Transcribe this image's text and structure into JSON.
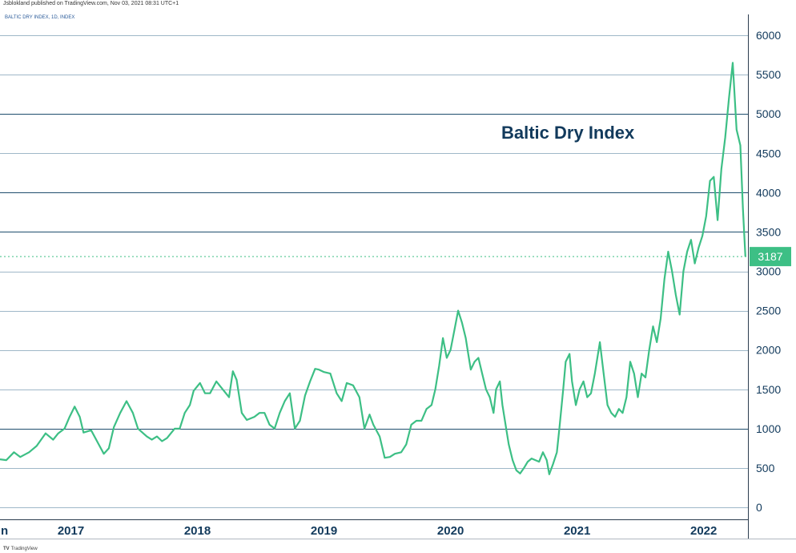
{
  "header": {
    "publisher": "Jsblokland published on TradingView.com, Nov 03, 2021 08:31 UTC+1",
    "symbol": "BALTIC DRY INDEX, 1D, INDEX"
  },
  "footer": {
    "watermark": "TradingView",
    "logo": "TV"
  },
  "colors": {
    "line": "#3dbf85",
    "grid": "#9fb8c8",
    "grid_major": "#1f4e6e",
    "last_price_bg": "#3dbf85",
    "text": "#123a5c"
  },
  "chart_data": {
    "type": "line",
    "title": "",
    "annotation": "Baltic Dry Index",
    "xlabel": "",
    "ylabel": "",
    "xlim": [
      2016.44,
      2022.35
    ],
    "ylim": [
      0,
      6000
    ],
    "y_ticks": [
      "0",
      "500",
      "1000",
      "1500",
      "2000",
      "2500",
      "3000",
      "3500",
      "4000",
      "4500",
      "5000",
      "5500",
      "6000"
    ],
    "x_ticks": [
      {
        "label": "Jun",
        "x": 2016.42
      },
      {
        "label": "2017",
        "x": 2017.0
      },
      {
        "label": "2018",
        "x": 2018.0
      },
      {
        "label": "2019",
        "x": 2019.0
      },
      {
        "label": "2020",
        "x": 2020.0
      },
      {
        "label": "2021",
        "x": 2021.0
      },
      {
        "label": "2022",
        "x": 2022.0
      }
    ],
    "last_value": 3187,
    "grid": true,
    "series": [
      {
        "points": [
          [
            2016.44,
            610
          ],
          [
            2016.49,
            600
          ],
          [
            2016.55,
            700
          ],
          [
            2016.6,
            640
          ],
          [
            2016.67,
            700
          ],
          [
            2016.73,
            780
          ],
          [
            2016.8,
            940
          ],
          [
            2016.86,
            860
          ],
          [
            2016.9,
            940
          ],
          [
            2016.95,
            1000
          ],
          [
            2016.99,
            1150
          ],
          [
            2017.03,
            1280
          ],
          [
            2017.07,
            1150
          ],
          [
            2017.1,
            950
          ],
          [
            2017.16,
            980
          ],
          [
            2017.22,
            800
          ],
          [
            2017.26,
            680
          ],
          [
            2017.3,
            750
          ],
          [
            2017.34,
            1020
          ],
          [
            2017.39,
            1200
          ],
          [
            2017.44,
            1350
          ],
          [
            2017.49,
            1200
          ],
          [
            2017.53,
            1000
          ],
          [
            2017.6,
            900
          ],
          [
            2017.64,
            860
          ],
          [
            2017.68,
            900
          ],
          [
            2017.72,
            840
          ],
          [
            2017.76,
            880
          ],
          [
            2017.82,
            1000
          ],
          [
            2017.86,
            1000
          ],
          [
            2017.9,
            1200
          ],
          [
            2017.94,
            1300
          ],
          [
            2017.97,
            1480
          ],
          [
            2018.02,
            1580
          ],
          [
            2018.06,
            1450
          ],
          [
            2018.1,
            1450
          ],
          [
            2018.15,
            1600
          ],
          [
            2018.2,
            1500
          ],
          [
            2018.25,
            1400
          ],
          [
            2018.28,
            1730
          ],
          [
            2018.31,
            1620
          ],
          [
            2018.35,
            1200
          ],
          [
            2018.39,
            1110
          ],
          [
            2018.45,
            1150
          ],
          [
            2018.49,
            1200
          ],
          [
            2018.53,
            1200
          ],
          [
            2018.57,
            1050
          ],
          [
            2018.61,
            1000
          ],
          [
            2018.65,
            1200
          ],
          [
            2018.69,
            1350
          ],
          [
            2018.73,
            1450
          ],
          [
            2018.77,
            1000
          ],
          [
            2018.81,
            1100
          ],
          [
            2018.85,
            1420
          ],
          [
            2018.89,
            1600
          ],
          [
            2018.93,
            1760
          ],
          [
            2018.96,
            1750
          ],
          [
            2019.0,
            1720
          ],
          [
            2019.05,
            1700
          ],
          [
            2019.1,
            1450
          ],
          [
            2019.14,
            1350
          ],
          [
            2019.18,
            1580
          ],
          [
            2019.23,
            1550
          ],
          [
            2019.28,
            1400
          ],
          [
            2019.32,
            1000
          ],
          [
            2019.36,
            1180
          ],
          [
            2019.39,
            1050
          ],
          [
            2019.44,
            900
          ],
          [
            2019.48,
            630
          ],
          [
            2019.52,
            640
          ],
          [
            2019.56,
            680
          ],
          [
            2019.61,
            700
          ],
          [
            2019.65,
            800
          ],
          [
            2019.69,
            1050
          ],
          [
            2019.73,
            1100
          ],
          [
            2019.77,
            1100
          ],
          [
            2019.81,
            1250
          ],
          [
            2019.85,
            1300
          ],
          [
            2019.88,
            1500
          ],
          [
            2019.91,
            1800
          ],
          [
            2019.94,
            2150
          ],
          [
            2019.97,
            1900
          ],
          [
            2020.0,
            2000
          ],
          [
            2020.03,
            2250
          ],
          [
            2020.06,
            2500
          ],
          [
            2020.09,
            2350
          ],
          [
            2020.12,
            2150
          ],
          [
            2020.14,
            1950
          ],
          [
            2020.16,
            1750
          ],
          [
            2020.19,
            1850
          ],
          [
            2020.22,
            1900
          ],
          [
            2020.25,
            1700
          ],
          [
            2020.28,
            1500
          ],
          [
            2020.31,
            1400
          ],
          [
            2020.34,
            1200
          ],
          [
            2020.36,
            1500
          ],
          [
            2020.39,
            1600
          ],
          [
            2020.41,
            1300
          ],
          [
            2020.44,
            1000
          ],
          [
            2020.46,
            800
          ],
          [
            2020.49,
            600
          ],
          [
            2020.52,
            470
          ],
          [
            2020.55,
            430
          ],
          [
            2020.58,
            500
          ],
          [
            2020.61,
            580
          ],
          [
            2020.64,
            620
          ],
          [
            2020.67,
            600
          ],
          [
            2020.7,
            580
          ],
          [
            2020.73,
            700
          ],
          [
            2020.76,
            600
          ],
          [
            2020.78,
            420
          ],
          [
            2020.81,
            550
          ],
          [
            2020.84,
            700
          ],
          [
            2020.86,
            1000
          ],
          [
            2020.89,
            1500
          ],
          [
            2020.91,
            1850
          ],
          [
            2020.94,
            1950
          ],
          [
            2020.96,
            1600
          ],
          [
            2020.99,
            1300
          ],
          [
            2021.02,
            1500
          ],
          [
            2021.05,
            1600
          ],
          [
            2021.08,
            1400
          ],
          [
            2021.11,
            1450
          ],
          [
            2021.14,
            1700
          ],
          [
            2021.18,
            2100
          ],
          [
            2021.21,
            1700
          ],
          [
            2021.24,
            1300
          ],
          [
            2021.27,
            1200
          ],
          [
            2021.3,
            1150
          ],
          [
            2021.33,
            1250
          ],
          [
            2021.36,
            1200
          ],
          [
            2021.39,
            1400
          ],
          [
            2021.42,
            1850
          ],
          [
            2021.45,
            1700
          ],
          [
            2021.48,
            1400
          ],
          [
            2021.51,
            1700
          ],
          [
            2021.54,
            1650
          ],
          [
            2021.57,
            2000
          ],
          [
            2021.6,
            2300
          ],
          [
            2021.63,
            2100
          ],
          [
            2021.66,
            2400
          ],
          [
            2021.69,
            2900
          ],
          [
            2021.72,
            3250
          ],
          [
            2021.75,
            3000
          ],
          [
            2021.78,
            2700
          ],
          [
            2021.81,
            2450
          ],
          [
            2021.84,
            3000
          ],
          [
            2021.87,
            3250
          ],
          [
            2021.9,
            3400
          ],
          [
            2021.93,
            3100
          ],
          [
            2021.96,
            3300
          ],
          [
            2021.99,
            3450
          ],
          [
            2022.02,
            3700
          ],
          [
            2022.05,
            4150
          ],
          [
            2022.08,
            4200
          ],
          [
            2022.11,
            3650
          ],
          [
            2022.14,
            4300
          ],
          [
            2022.17,
            4700
          ],
          [
            2022.2,
            5200
          ],
          [
            2022.23,
            5650
          ],
          [
            2022.26,
            4800
          ],
          [
            2022.29,
            4600
          ],
          [
            2022.31,
            3800
          ],
          [
            2022.33,
            3187
          ]
        ]
      }
    ]
  }
}
